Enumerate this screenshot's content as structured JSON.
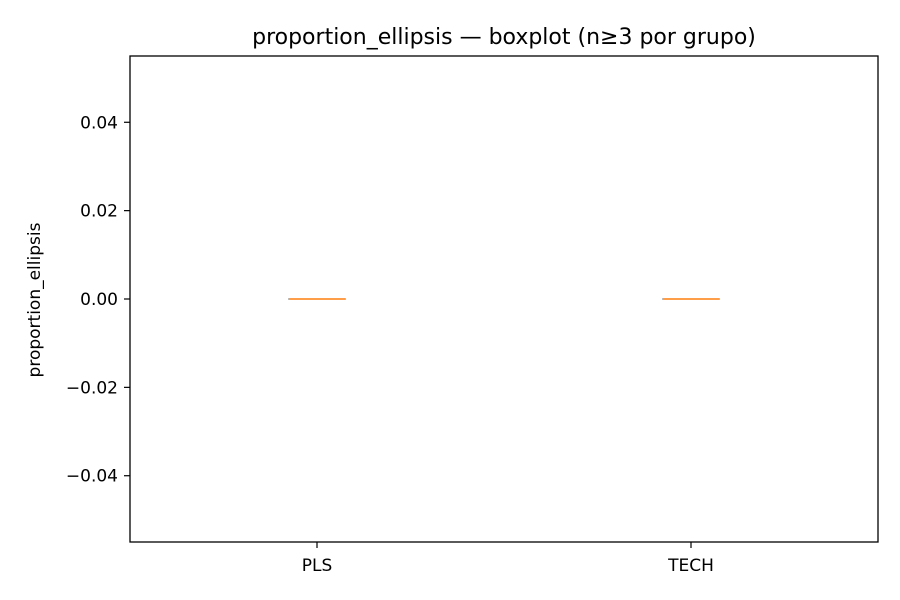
{
  "chart_data": {
    "type": "boxplot",
    "title": "proportion_ellipsis — boxplot (n≥3 por grupo)",
    "xlabel": "",
    "ylabel": "proportion_ellipsis",
    "ylim": [
      -0.055,
      0.055
    ],
    "y_ticks": [
      -0.04,
      -0.02,
      0.0,
      0.02,
      0.04
    ],
    "y_tick_labels": [
      "−0.04",
      "−0.02",
      "0.00",
      "0.02",
      "0.04"
    ],
    "categories": [
      "PLS",
      "TECH"
    ],
    "boxes": [
      {
        "category": "PLS",
        "min": 0.0,
        "q1": 0.0,
        "median": 0.0,
        "q3": 0.0,
        "max": 0.0
      },
      {
        "category": "TECH",
        "min": 0.0,
        "q1": 0.0,
        "median": 0.0,
        "q3": 0.0,
        "max": 0.0
      }
    ],
    "grid": false,
    "colors": {
      "box": "#000000",
      "median": "#ff7f0e"
    }
  }
}
